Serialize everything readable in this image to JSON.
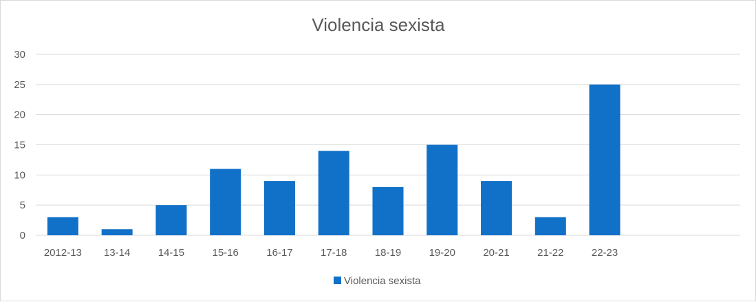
{
  "chart_data": {
    "type": "bar",
    "title": "Violencia sexista",
    "categories": [
      "2012-13",
      "13-14",
      "14-15",
      "15-16",
      "16-17",
      "17-18",
      "18-19",
      "19-20",
      "20-21",
      "21-22",
      "22-23"
    ],
    "series": [
      {
        "name": "Violencia sexista",
        "values": [
          3,
          1,
          5,
          11,
          9,
          14,
          8,
          15,
          9,
          3,
          25
        ]
      }
    ],
    "ylim": [
      0,
      30
    ],
    "yticks": [
      0,
      5,
      10,
      15,
      20,
      25,
      30
    ],
    "grid": true,
    "legend_position": "bottom",
    "colors": {
      "bar": "#1170c8",
      "grid": "#d9d9d9",
      "text": "#595959"
    }
  }
}
